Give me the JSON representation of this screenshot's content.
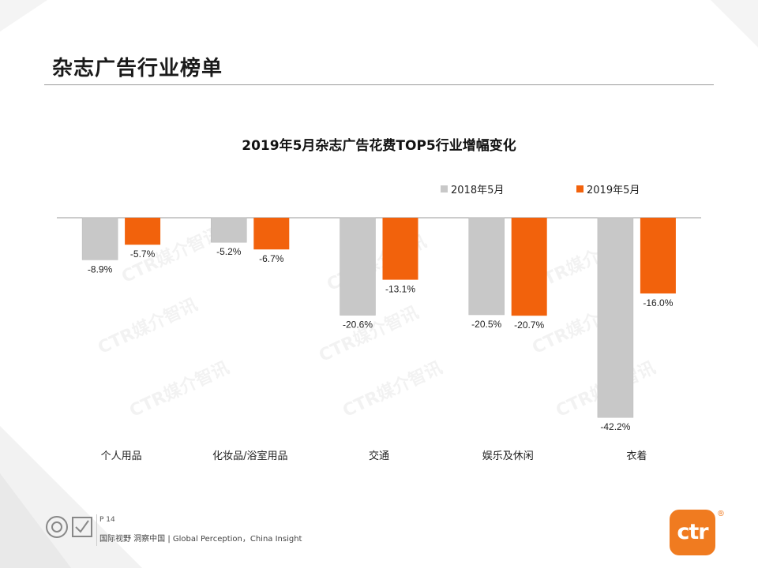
{
  "page": {
    "title": "杂志广告行业榜单",
    "page_number": "P 14",
    "footer_text": "国际视野  洞察中国 |  Global Perception，China Insight",
    "brand_logo_text": "ctr",
    "brand_logo_mark": "®",
    "watermark_text": "CTR媒介智讯"
  },
  "colors": {
    "series_2018": "#c8c8c8",
    "series_2019": "#f2620c",
    "brand": "#f07b20"
  },
  "chart_data": {
    "type": "bar",
    "title": "2019年5月杂志广告花费TOP5行业增幅变化",
    "categories": [
      "个人用品",
      "化妆品/浴室用品",
      "交通",
      "娱乐及休闲",
      "衣着"
    ],
    "series": [
      {
        "name": "2018年5月",
        "values": [
          -8.9,
          -5.2,
          -20.6,
          -20.5,
          -42.2
        ],
        "labels": [
          "-8.9%",
          "-5.2%",
          "-20.6%",
          "-20.5%",
          "-42.2%"
        ]
      },
      {
        "name": "2019年5月",
        "values": [
          -5.7,
          -6.7,
          -13.1,
          -20.7,
          -16.0
        ],
        "labels": [
          "-5.7%",
          "-6.7%",
          "-13.1%",
          "-20.7%",
          "-16.0%"
        ]
      }
    ],
    "unit": "%",
    "ylim": [
      -45,
      0
    ],
    "legend_position": "top-right",
    "grid": false
  }
}
